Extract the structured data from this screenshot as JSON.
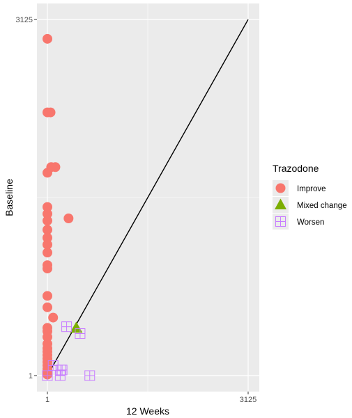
{
  "chart_data": {
    "type": "scatter",
    "xlabel": "12 Weeks",
    "ylabel": "Baseline",
    "xlim": [
      1,
      3125
    ],
    "ylim": [
      1,
      3125
    ],
    "x_ticks": [
      "1",
      "3125"
    ],
    "y_ticks": [
      "1",
      "3125"
    ],
    "grid": true,
    "reference_line": {
      "from": [
        1,
        1
      ],
      "to": [
        3125,
        3125
      ]
    },
    "legend": {
      "title": "Trazodone",
      "position": "right"
    },
    "series": [
      {
        "name": "Improve",
        "shape": "circle",
        "color": "#F8766D",
        "points": [
          [
            1,
            2955
          ],
          [
            1,
            2310
          ],
          [
            50,
            2310
          ],
          [
            1,
            1780
          ],
          [
            60,
            1830
          ],
          [
            125,
            1830
          ],
          [
            1,
            1480
          ],
          [
            1,
            1420
          ],
          [
            1,
            1360
          ],
          [
            1,
            1280
          ],
          [
            1,
            1210
          ],
          [
            1,
            1150
          ],
          [
            1,
            1080
          ],
          [
            1,
            970
          ],
          [
            1,
            940
          ],
          [
            330,
            1380
          ],
          [
            1,
            700
          ],
          [
            1,
            600
          ],
          [
            90,
            510
          ],
          [
            1,
            420
          ],
          [
            1,
            390
          ],
          [
            1,
            340
          ],
          [
            1,
            280
          ],
          [
            1,
            240
          ],
          [
            1,
            210
          ],
          [
            1,
            180
          ],
          [
            1,
            150
          ],
          [
            1,
            120
          ],
          [
            1,
            90
          ],
          [
            1,
            60
          ],
          [
            1,
            30
          ],
          [
            1,
            10
          ]
        ]
      },
      {
        "name": "Mixed change",
        "shape": "triangle",
        "color": "#7CAE00",
        "points": [
          [
            450,
            420
          ]
        ]
      },
      {
        "name": "Worsen",
        "shape": "square-grid",
        "color": "#C77CFF",
        "points": [
          [
            300,
            430
          ],
          [
            510,
            370
          ],
          [
            90,
            90
          ],
          [
            210,
            50
          ],
          [
            230,
            50
          ],
          [
            200,
            1
          ],
          [
            660,
            1
          ],
          [
            1,
            1
          ]
        ]
      }
    ]
  }
}
